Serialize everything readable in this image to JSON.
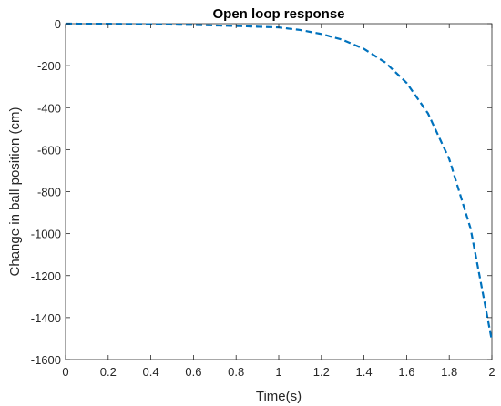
{
  "chart_data": {
    "type": "line",
    "title": "Open loop response",
    "xlabel": "Time(s)",
    "ylabel": "Change in ball position (cm)",
    "xlim": [
      0,
      2
    ],
    "ylim": [
      -1600,
      0
    ],
    "x_ticks": [
      "0",
      "0.2",
      "0.4",
      "0.6",
      "0.8",
      "1",
      "1.2",
      "1.4",
      "1.6",
      "1.8",
      "2"
    ],
    "y_ticks": [
      "0",
      "-200",
      "-400",
      "-600",
      "-800",
      "-1000",
      "-1200",
      "-1400",
      "-1600"
    ],
    "grid": false,
    "series": [
      {
        "line_style": "dashed",
        "color": "#0072BD",
        "x": [
          0,
          0.2,
          0.4,
          0.6,
          0.8,
          1.0,
          1.1,
          1.2,
          1.3,
          1.4,
          1.5,
          1.6,
          1.7,
          1.8,
          1.9,
          2.0
        ],
        "y": [
          0,
          -0.6,
          -2.6,
          -5.9,
          -11,
          -18,
          -30,
          -49,
          -77,
          -120,
          -185,
          -282,
          -427,
          -645,
          -975,
          -1510
        ]
      }
    ]
  }
}
